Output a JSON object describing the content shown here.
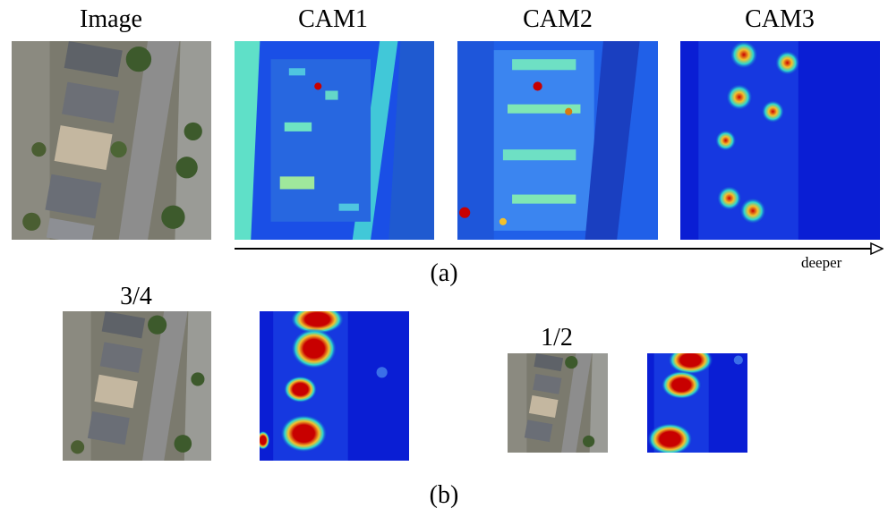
{
  "figure": {
    "row_a": {
      "titles": {
        "image": "Image",
        "cam1": "CAM1",
        "cam2": "CAM2",
        "cam3": "CAM3"
      },
      "arrow_label": "deeper",
      "caption": "(a)"
    },
    "row_b": {
      "scale_large": "3/4",
      "scale_small": "1/2",
      "caption": "(b)"
    },
    "colors": {
      "aerial_road": "#8d8d8d",
      "aerial_roof": "#6a6e76",
      "aerial_tree": "#3d5a2c",
      "heat_low": "#0a1ed4",
      "heat_mid": "#2dd7cf",
      "heat_high": "#c80000"
    },
    "icons": [
      "aerial-photo",
      "heatmap",
      "right-arrow"
    ]
  }
}
